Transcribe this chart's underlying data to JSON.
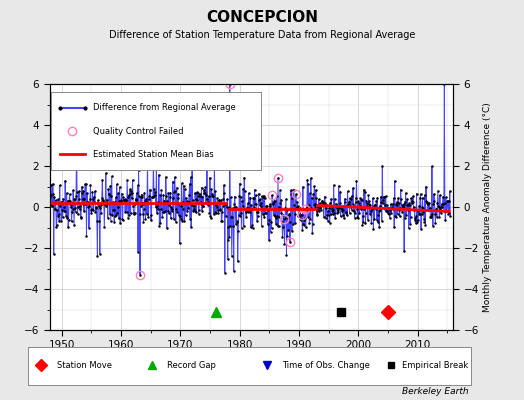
{
  "title": "CONCEPCION",
  "subtitle": "Difference of Station Temperature Data from Regional Average",
  "ylabel": "Monthly Temperature Anomaly Difference (°C)",
  "background_color": "#e8e8e8",
  "plot_bg_color": "#ffffff",
  "xlim": [
    1948,
    2016
  ],
  "ylim": [
    -6,
    6
  ],
  "yticks": [
    -6,
    -4,
    -2,
    0,
    2,
    4,
    6
  ],
  "xticks": [
    1950,
    1960,
    1970,
    1980,
    1990,
    2000,
    2010
  ],
  "seed": 42,
  "station_moves": [
    2005
  ],
  "record_gaps": [
    1976
  ],
  "empirical_breaks": [
    1997
  ],
  "berkeley_earth_text": "Berkeley Earth"
}
